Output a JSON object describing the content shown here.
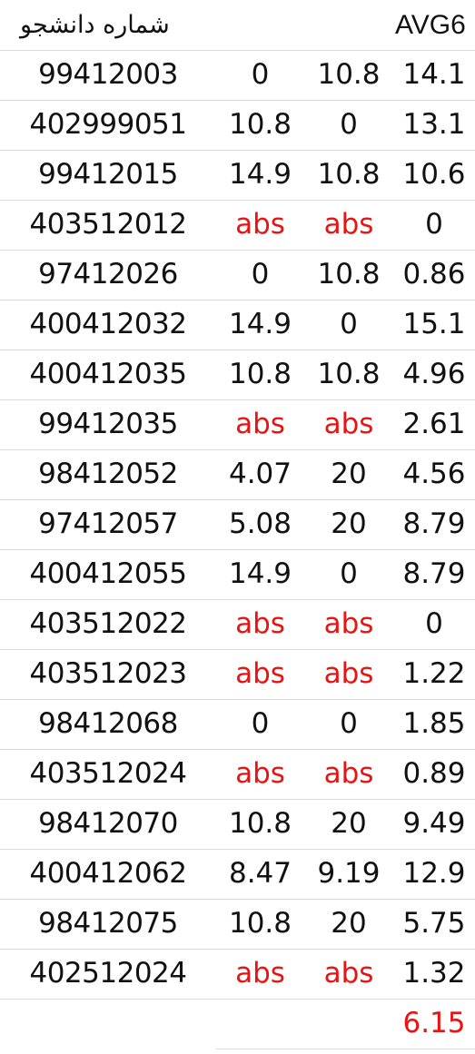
{
  "header": {
    "student_id_label": "شماره دانشجو",
    "avg_label": "AVG6"
  },
  "rows": [
    {
      "id": "99412003",
      "a": "0",
      "b": "10.8",
      "avg": "14.1"
    },
    {
      "id": "402999051",
      "a": "10.8",
      "b": "0",
      "avg": "13.1"
    },
    {
      "id": "99412015",
      "a": "14.9",
      "b": "10.8",
      "avg": "10.6"
    },
    {
      "id": "403512012",
      "a": "abs",
      "b": "abs",
      "avg": "0"
    },
    {
      "id": "97412026",
      "a": "0",
      "b": "10.8",
      "avg": "0.86"
    },
    {
      "id": "400412032",
      "a": "14.9",
      "b": "0",
      "avg": "15.1"
    },
    {
      "id": "400412035",
      "a": "10.8",
      "b": "10.8",
      "avg": "4.96"
    },
    {
      "id": "99412035",
      "a": "abs",
      "b": "abs",
      "avg": "2.61"
    },
    {
      "id": "98412052",
      "a": "4.07",
      "b": "20",
      "avg": "4.56"
    },
    {
      "id": "97412057",
      "a": "5.08",
      "b": "20",
      "avg": "8.79"
    },
    {
      "id": "400412055",
      "a": "14.9",
      "b": "0",
      "avg": "8.79"
    },
    {
      "id": "403512022",
      "a": "abs",
      "b": "abs",
      "avg": "0"
    },
    {
      "id": "403512023",
      "a": "abs",
      "b": "abs",
      "avg": "1.22"
    },
    {
      "id": "98412068",
      "a": "0",
      "b": "0",
      "avg": "1.85"
    },
    {
      "id": "403512024",
      "a": "abs",
      "b": "abs",
      "avg": "0.89"
    },
    {
      "id": "98412070",
      "a": "10.8",
      "b": "20",
      "avg": "9.49"
    },
    {
      "id": "400412062",
      "a": "8.47",
      "b": "9.19",
      "avg": "12.9"
    },
    {
      "id": "98412075",
      "a": "10.8",
      "b": "20",
      "avg": "5.75"
    },
    {
      "id": "402512024",
      "a": "abs",
      "b": "abs",
      "avg": "1.32"
    }
  ],
  "total": {
    "avg": "6.15"
  },
  "colors": {
    "absent_text": "#e81414",
    "total_text": "#e81414",
    "gridline": "#d9d9d9"
  }
}
